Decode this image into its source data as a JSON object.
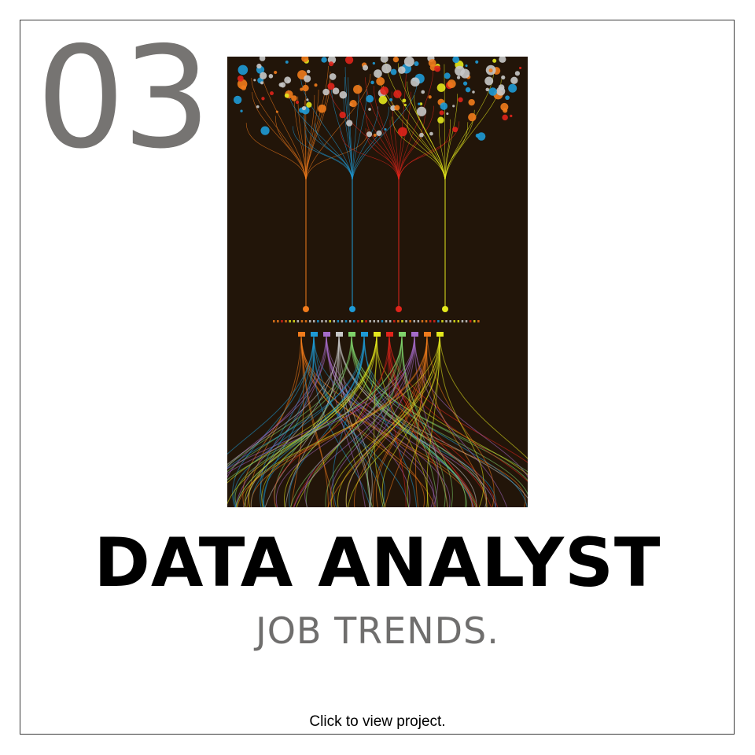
{
  "card": {
    "number": "03",
    "title": "DATA ANALYST",
    "subtitle": "JOB TRENDS.",
    "cta_label": "Click to view project."
  },
  "artwork": {
    "icon": "data-flow-illustration",
    "colors": {
      "background": "#221509",
      "orange": "#f07b1c",
      "blue": "#1e9ad6",
      "red": "#e0241b",
      "yellow": "#e4e81d",
      "grey": "#c8c8c8",
      "green": "#7fd36b",
      "purple": "#a56cc9"
    }
  },
  "colors": {
    "number": "#767472",
    "title": "#000000",
    "subtitle": "#6f6e6d",
    "border": "#3a3a3a"
  }
}
